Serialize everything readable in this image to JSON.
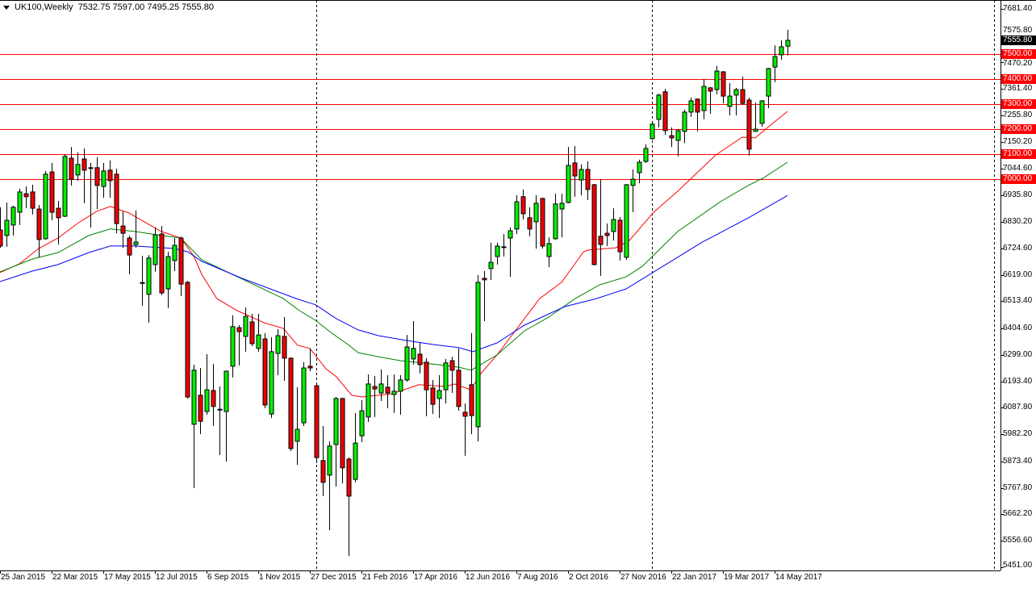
{
  "header": {
    "symbol": "UK100,Weekly",
    "open": "7532.75",
    "high": "7597.00",
    "low": "7495.25",
    "close": "7555.80"
  },
  "colors": {
    "bull": "#00ee00",
    "bear": "#ee0000",
    "outline": "#000000",
    "ma_fast": "#ff0000",
    "ma_mid": "#008000",
    "ma_slow": "#0000ff",
    "hline": "#ff0000"
  },
  "chart_data": {
    "type": "candlestick",
    "title": "UK100,Weekly",
    "ylim": [
      5451.0,
      7681.4
    ],
    "price_ticks": [
      "7681.40",
      "7575.80",
      "7470.20",
      "7361.40",
      "7255.80",
      "7150.20",
      "7044.60",
      "6935.80",
      "6830.20",
      "6724.60",
      "6619.00",
      "6513.40",
      "6404.60",
      "6299.00",
      "6193.40",
      "6087.80",
      "5982.20",
      "5873.40",
      "5767.80",
      "5662.20",
      "5556.60",
      "5451.00"
    ],
    "date_ticks": [
      "25 Jan 2015",
      "22 Mar 2015",
      "17 May 2015",
      "12 Jul 2015",
      "6 Sep 2015",
      "1 Nov 2015",
      "27 Dec 2015",
      "21 Feb 2016",
      "17 Apr 2016",
      "12 Jun 2016",
      "7 Aug 2016",
      "2 Oct 2016",
      "27 Nov 2016",
      "22 Jan 2017",
      "19 Mar 2017",
      "14 May 2017"
    ],
    "date_tick_every_bars": 8,
    "period_separators_at_bar": [
      49,
      101
    ],
    "horizontal_levels": [
      "7500.00",
      "7400.00",
      "7300.00",
      "7200.00",
      "7100.00",
      "7000.00"
    ],
    "current_price": "7555.80",
    "ohlc_columns": [
      "open",
      "high",
      "low",
      "close"
    ],
    "candles": [
      [
        6798,
        6889,
        6727,
        6734
      ],
      [
        6776,
        6908,
        6731,
        6837
      ],
      [
        6818,
        6895,
        6776,
        6889
      ],
      [
        6869,
        6963,
        6818,
        6950
      ],
      [
        6943,
        6972,
        6885,
        6931
      ],
      [
        6950,
        6979,
        6860,
        6885
      ],
      [
        6882,
        6898,
        6689,
        6760
      ],
      [
        6763,
        7034,
        6760,
        7021
      ],
      [
        7030,
        7066,
        6837,
        6869
      ],
      [
        6885,
        6914,
        6740,
        6847
      ],
      [
        6853,
        7101,
        6850,
        7092
      ],
      [
        7085,
        7130,
        6976,
        7001
      ],
      [
        7018,
        7108,
        6995,
        7060
      ],
      [
        7082,
        7124,
        6905,
        7037
      ],
      [
        7047,
        7066,
        6808,
        7045
      ],
      [
        7047,
        7089,
        6882,
        6976
      ],
      [
        6972,
        7066,
        6927,
        7034
      ],
      [
        7037,
        7076,
        6927,
        6995
      ],
      [
        7021,
        7043,
        6785,
        6824
      ],
      [
        6814,
        6872,
        6727,
        6785
      ],
      [
        6766,
        6776,
        6621,
        6698
      ],
      [
        6740,
        6876,
        6727,
        6750
      ],
      [
        6588,
        6695,
        6495,
        6586
      ],
      [
        6541,
        6698,
        6428,
        6686
      ],
      [
        6660,
        6808,
        6631,
        6779
      ],
      [
        6782,
        6814,
        6537,
        6547
      ],
      [
        6563,
        6711,
        6486,
        6692
      ],
      [
        6676,
        6766,
        6634,
        6737
      ],
      [
        6766,
        6772,
        6534,
        6582
      ],
      [
        6589,
        6595,
        6125,
        6131
      ],
      [
        6022,
        6260,
        5767,
        6238
      ],
      [
        6138,
        6247,
        5983,
        6034
      ],
      [
        6073,
        6302,
        6060,
        6160
      ],
      [
        6157,
        6263,
        6015,
        6093
      ],
      [
        6082,
        6173,
        5899,
        6080
      ],
      [
        6073,
        6237,
        5873,
        6234
      ],
      [
        6254,
        6457,
        6209,
        6412
      ],
      [
        6408,
        6418,
        6257,
        6392
      ],
      [
        6373,
        6489,
        6312,
        6453
      ],
      [
        6431,
        6463,
        6334,
        6344
      ],
      [
        6325,
        6463,
        6312,
        6379
      ],
      [
        6363,
        6386,
        6086,
        6099
      ],
      [
        6063,
        6370,
        6047,
        6312
      ],
      [
        6305,
        6402,
        6218,
        6376
      ],
      [
        6373,
        6450,
        6196,
        6286
      ],
      [
        6286,
        6289,
        5915,
        5925
      ],
      [
        5954,
        6170,
        5860,
        6002
      ],
      [
        6028,
        6270,
        6015,
        6247
      ],
      [
        6254,
        6325,
        6234,
        6247
      ],
      [
        6176,
        6180,
        5867,
        5889
      ],
      [
        5877,
        6015,
        5735,
        5790
      ],
      [
        5819,
        5954,
        5599,
        5935
      ],
      [
        5941,
        6131,
        5773,
        6125
      ],
      [
        6125,
        6128,
        5786,
        5848
      ],
      [
        5883,
        5889,
        5496,
        5735
      ],
      [
        5802,
        6067,
        5790,
        5947
      ],
      [
        5976,
        6118,
        5951,
        6076
      ],
      [
        6051,
        6221,
        6031,
        6183
      ],
      [
        6173,
        6215,
        6051,
        6163
      ],
      [
        6147,
        6241,
        6115,
        6183
      ],
      [
        6170,
        6218,
        6086,
        6147
      ],
      [
        6141,
        6221,
        6067,
        6154
      ],
      [
        6154,
        6218,
        6060,
        6199
      ],
      [
        6199,
        6379,
        6192,
        6331
      ],
      [
        6283,
        6434,
        6260,
        6325
      ],
      [
        6302,
        6347,
        6225,
        6260
      ],
      [
        6270,
        6286,
        6054,
        6160
      ],
      [
        6167,
        6199,
        6063,
        6102
      ],
      [
        6125,
        6218,
        6047,
        6157
      ],
      [
        6160,
        6283,
        6105,
        6267
      ],
      [
        6276,
        6292,
        6147,
        6238
      ],
      [
        6238,
        6325,
        6076,
        6093
      ],
      [
        6070,
        6105,
        5896,
        6054
      ],
      [
        6180,
        6386,
        5983,
        6057
      ],
      [
        6012,
        6618,
        5954,
        6589
      ],
      [
        6605,
        6634,
        6434,
        6599
      ],
      [
        6644,
        6747,
        6599,
        6669
      ],
      [
        6692,
        6747,
        6660,
        6734
      ],
      [
        6729,
        6782,
        6692,
        6731
      ],
      [
        6766,
        6808,
        6611,
        6795
      ],
      [
        6802,
        6937,
        6782,
        6911
      ],
      [
        6931,
        6960,
        6840,
        6863
      ],
      [
        6847,
        6889,
        6773,
        6802
      ],
      [
        6831,
        6937,
        6724,
        6905
      ],
      [
        6924,
        6927,
        6724,
        6734
      ],
      [
        6692,
        6769,
        6650,
        6744
      ],
      [
        6763,
        6943,
        6760,
        6902
      ],
      [
        6882,
        6943,
        6769,
        6905
      ],
      [
        6908,
        7130,
        6905,
        7056
      ],
      [
        7066,
        7134,
        6931,
        7014
      ],
      [
        6998,
        7060,
        6937,
        7040
      ],
      [
        7040,
        7072,
        6918,
        6960
      ],
      [
        6979,
        6982,
        6657,
        6660
      ],
      [
        6773,
        7001,
        6615,
        6740
      ],
      [
        6785,
        6824,
        6734,
        6776
      ],
      [
        6792,
        6885,
        6756,
        6840
      ],
      [
        6837,
        6850,
        6676,
        6711
      ],
      [
        6689,
        6982,
        6679,
        6979
      ],
      [
        6976,
        7040,
        6869,
        7001
      ],
      [
        7027,
        7079,
        6985,
        7069
      ],
      [
        7072,
        7140,
        7066,
        7124
      ],
      [
        7163,
        7224,
        7159,
        7221
      ],
      [
        7240,
        7343,
        7208,
        7337
      ],
      [
        7350,
        7362,
        7179,
        7195
      ],
      [
        7175,
        7208,
        7130,
        7166
      ],
      [
        7156,
        7201,
        7092,
        7195
      ],
      [
        7192,
        7279,
        7146,
        7269
      ],
      [
        7269,
        7327,
        7250,
        7314
      ],
      [
        7321,
        7324,
        7192,
        7269
      ],
      [
        7275,
        7401,
        7240,
        7372
      ],
      [
        7366,
        7369,
        7262,
        7353
      ],
      [
        7359,
        7453,
        7340,
        7433
      ],
      [
        7430,
        7433,
        7304,
        7333
      ],
      [
        7292,
        7385,
        7256,
        7333
      ],
      [
        7337,
        7366,
        7256,
        7359
      ],
      [
        7359,
        7411,
        7298,
        7304
      ],
      [
        7317,
        7327,
        7095,
        7121
      ],
      [
        7192,
        7308,
        7190,
        7201
      ],
      [
        7224,
        7317,
        7211,
        7314
      ],
      [
        7333,
        7446,
        7285,
        7443
      ],
      [
        7449,
        7536,
        7388,
        7491
      ],
      [
        7498,
        7556,
        7478,
        7530
      ],
      [
        7532.75,
        7597.0,
        7495.25,
        7555.8
      ]
    ],
    "moving_averages": [
      {
        "name": "ma-fast",
        "points": [
          [
            0,
            6628
          ],
          [
            3,
            6663
          ],
          [
            6,
            6724
          ],
          [
            9,
            6766
          ],
          [
            12,
            6824
          ],
          [
            15,
            6873
          ],
          [
            17.1,
            6892
          ],
          [
            20,
            6866
          ],
          [
            23,
            6821
          ],
          [
            25,
            6792
          ],
          [
            28,
            6766
          ],
          [
            30,
            6695
          ],
          [
            31.25,
            6621
          ],
          [
            33.6,
            6524
          ],
          [
            36.75,
            6476
          ],
          [
            40.9,
            6428
          ],
          [
            43.9,
            6405
          ],
          [
            46.1,
            6338
          ],
          [
            48,
            6325
          ],
          [
            50.5,
            6244
          ],
          [
            52.1,
            6212
          ],
          [
            54.5,
            6138
          ],
          [
            56.1,
            6131
          ],
          [
            60.75,
            6144
          ],
          [
            64.9,
            6180
          ],
          [
            69.1,
            6173
          ],
          [
            70.4,
            6183
          ],
          [
            72.9,
            6160
          ],
          [
            74.5,
            6225
          ],
          [
            77,
            6299
          ],
          [
            83.6,
            6524
          ],
          [
            87,
            6589
          ],
          [
            90.4,
            6711
          ],
          [
            91.1,
            6718
          ],
          [
            95.4,
            6727
          ],
          [
            97.5,
            6756
          ],
          [
            101.25,
            6869
          ],
          [
            105,
            6953
          ],
          [
            110.9,
            7098
          ],
          [
            115,
            7169
          ],
          [
            117,
            7166
          ],
          [
            119.1,
            7211
          ],
          [
            122,
            7272
          ]
        ]
      },
      {
        "name": "ma-mid",
        "points": [
          [
            0,
            6631
          ],
          [
            5,
            6682
          ],
          [
            9,
            6708
          ],
          [
            13.75,
            6776
          ],
          [
            17.1,
            6802
          ],
          [
            20.9,
            6792
          ],
          [
            25,
            6776
          ],
          [
            28,
            6766
          ],
          [
            31.25,
            6679
          ],
          [
            43.9,
            6524
          ],
          [
            46.4,
            6476
          ],
          [
            48.9,
            6437
          ],
          [
            51.4,
            6386
          ],
          [
            53.9,
            6341
          ],
          [
            55.5,
            6308
          ],
          [
            58.6,
            6292
          ],
          [
            62,
            6276
          ],
          [
            67,
            6263
          ],
          [
            71.1,
            6250
          ],
          [
            73,
            6238
          ],
          [
            77,
            6299
          ],
          [
            81.25,
            6395
          ],
          [
            85,
            6450
          ],
          [
            89.1,
            6524
          ],
          [
            92.9,
            6579
          ],
          [
            97,
            6611
          ],
          [
            99.5,
            6653
          ],
          [
            105,
            6792
          ],
          [
            111.6,
            6911
          ],
          [
            115.9,
            6976
          ],
          [
            118.4,
            7008
          ],
          [
            122,
            7069
          ]
        ]
      },
      {
        "name": "ma-slow",
        "points": [
          [
            0,
            6592
          ],
          [
            5,
            6634
          ],
          [
            9,
            6660
          ],
          [
            13.75,
            6708
          ],
          [
            17.1,
            6734
          ],
          [
            20.9,
            6734
          ],
          [
            27.1,
            6724
          ],
          [
            29.1,
            6711
          ],
          [
            31.25,
            6673
          ],
          [
            37.5,
            6605
          ],
          [
            45.9,
            6524
          ],
          [
            48.9,
            6499
          ],
          [
            52.1,
            6444
          ],
          [
            55.5,
            6399
          ],
          [
            58.6,
            6376
          ],
          [
            62.9,
            6357
          ],
          [
            67,
            6341
          ],
          [
            71.1,
            6328
          ],
          [
            73.25,
            6312
          ],
          [
            77,
            6347
          ],
          [
            81.25,
            6418
          ],
          [
            87.5,
            6492
          ],
          [
            92.4,
            6524
          ],
          [
            97,
            6563
          ],
          [
            102.9,
            6656
          ],
          [
            108.75,
            6749
          ],
          [
            115.9,
            6846
          ],
          [
            122,
            6936
          ]
        ]
      }
    ]
  }
}
